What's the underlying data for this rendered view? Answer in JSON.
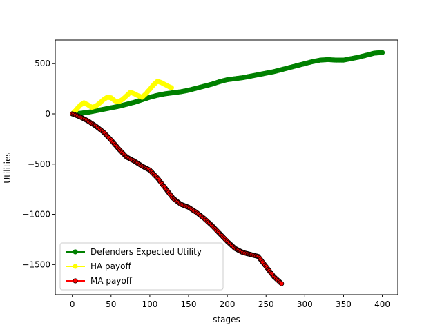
{
  "chart_data": {
    "type": "line",
    "title": "",
    "xlabel": "stages",
    "ylabel": "Utilities",
    "xlim": [
      -22,
      420
    ],
    "ylim": [
      -1800,
      735
    ],
    "xticks": [
      0,
      50,
      100,
      150,
      200,
      250,
      300,
      350,
      400
    ],
    "yticks": [
      -1500,
      -1000,
      -500,
      0,
      500
    ],
    "xtick_labels": [
      "0",
      "50",
      "100",
      "150",
      "200",
      "250",
      "300",
      "350",
      "400"
    ],
    "ytick_labels": [
      "−1500",
      "−1000",
      "−500",
      "0",
      "500"
    ],
    "grid": false,
    "legend_position": "lower-left",
    "series": [
      {
        "name": "Defenders Expected Utility",
        "color": "#008000",
        "marker_edge": "#008000",
        "x": [
          0,
          10,
          20,
          30,
          40,
          50,
          60,
          70,
          80,
          90,
          100,
          110,
          120,
          130,
          140,
          150,
          160,
          170,
          180,
          190,
          200,
          210,
          220,
          230,
          240,
          250,
          260,
          270,
          280,
          290,
          300,
          310,
          320,
          330,
          340,
          350,
          360,
          370,
          380,
          390,
          400
        ],
        "y": [
          0,
          5,
          15,
          30,
          45,
          60,
          75,
          95,
          115,
          140,
          165,
          185,
          200,
          210,
          220,
          235,
          255,
          275,
          295,
          320,
          340,
          350,
          360,
          375,
          390,
          405,
          420,
          440,
          460,
          480,
          500,
          520,
          535,
          540,
          535,
          535,
          550,
          565,
          585,
          605,
          610
        ]
      },
      {
        "name": "HA payoff",
        "color": "#ffff00",
        "marker_edge": "#ffff00",
        "x": [
          0,
          5,
          10,
          15,
          20,
          25,
          30,
          35,
          40,
          45,
          50,
          55,
          60,
          65,
          70,
          75,
          80,
          85,
          90,
          95,
          100,
          105,
          110,
          115,
          120,
          125,
          128
        ],
        "y": [
          0,
          40,
          85,
          110,
          90,
          65,
          75,
          105,
          140,
          165,
          160,
          130,
          120,
          145,
          180,
          215,
          200,
          180,
          165,
          200,
          245,
          290,
          325,
          310,
          290,
          270,
          260
        ]
      },
      {
        "name": "MA payoff",
        "color": "#ff0000",
        "marker_edge": "#000000",
        "x": [
          0,
          10,
          20,
          30,
          40,
          50,
          60,
          70,
          80,
          90,
          100,
          110,
          120,
          130,
          140,
          150,
          160,
          170,
          180,
          190,
          200,
          210,
          220,
          230,
          240,
          250,
          260,
          270
        ],
        "y": [
          0,
          -30,
          -70,
          -120,
          -180,
          -260,
          -350,
          -430,
          -470,
          -520,
          -560,
          -640,
          -740,
          -840,
          -900,
          -930,
          -980,
          -1040,
          -1110,
          -1190,
          -1270,
          -1340,
          -1380,
          -1400,
          -1420,
          -1520,
          -1620,
          -1690
        ]
      }
    ]
  }
}
